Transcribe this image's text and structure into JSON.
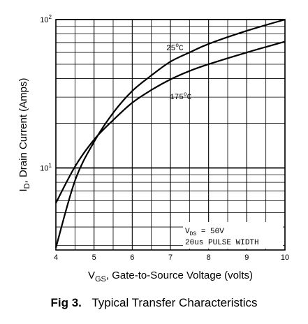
{
  "chart_data": {
    "type": "line",
    "xlabel_main": "V",
    "xlabel_sub": "GS",
    "xlabel_rest": ", Gate-to-Source Voltage (volts)",
    "ylabel_main": "I",
    "ylabel_sub": "D",
    "ylabel_rest": ", Drain Current (Amps)",
    "xlim": [
      4,
      10
    ],
    "ylim": [
      2.8,
      100
    ],
    "yscale": "log",
    "grid": true,
    "x_ticks": [
      "4",
      "5",
      "6",
      "7",
      "8",
      "9",
      "10"
    ],
    "y_ticks": [
      {
        "base": "10",
        "exp": "2",
        "value": 100
      },
      {
        "base": "10",
        "exp": "1",
        "value": 10
      }
    ],
    "series": [
      {
        "name": "25°C",
        "name_base": "25",
        "name_sup": "o",
        "name_unit": "C",
        "x": [
          4.0,
          4.5,
          5.0,
          5.5,
          6.0,
          6.5,
          7.0,
          7.5,
          8.0,
          9.0,
          10.0
        ],
        "y": [
          2.9,
          8.2,
          15.0,
          23.5,
          33.0,
          42.0,
          52.0,
          60.0,
          68.5,
          84.0,
          100.0
        ]
      },
      {
        "name": "175°C",
        "name_base": "175",
        "name_sup": "o",
        "name_unit": "C",
        "x": [
          4.0,
          4.5,
          5.0,
          5.5,
          6.0,
          6.5,
          7.0,
          7.5,
          8.0,
          9.0,
          10.0
        ],
        "y": [
          5.8,
          10.2,
          15.5,
          21.0,
          27.5,
          33.5,
          39.5,
          45.0,
          50.0,
          60.0,
          71.0
        ]
      }
    ],
    "annotation": {
      "vds_main": "V",
      "vds_sub": "DS",
      "vds_rest": " = 50V",
      "pulse": "20us PULSE WIDTH"
    }
  },
  "caption": {
    "number": "Fig 3.",
    "text": "Typical Transfer Characteristics"
  }
}
